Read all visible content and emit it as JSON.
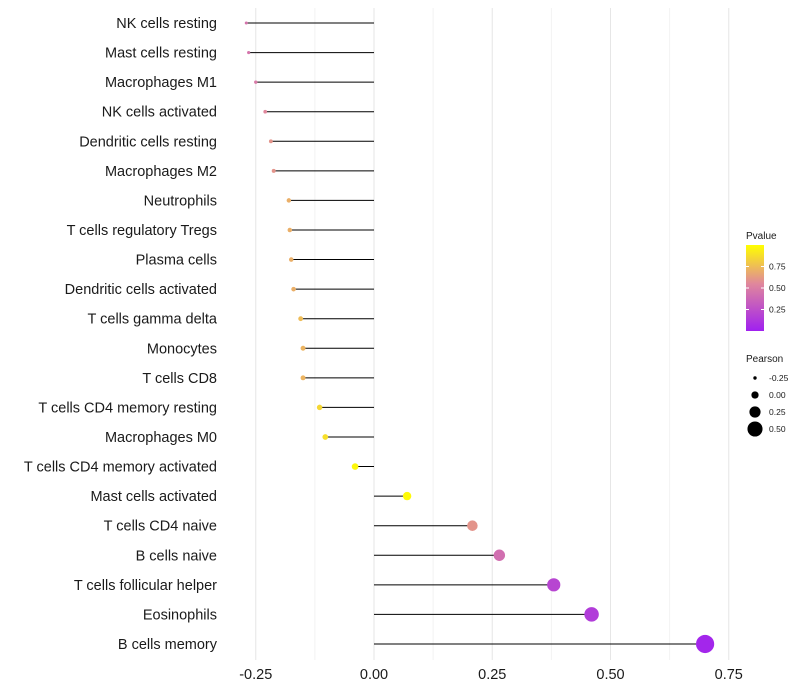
{
  "chart_data": {
    "type": "lollipop",
    "title": "",
    "xlabel": "",
    "ylabel": "",
    "xlim": [
      -0.3,
      0.78
    ],
    "x_ticks": [
      -0.25,
      0.0,
      0.25,
      0.5,
      0.75
    ],
    "x_tick_labels": [
      "-0.25",
      "0.00",
      "0.25",
      "0.50",
      "0.75"
    ],
    "grid": true,
    "categories": [
      "NK cells resting",
      "Mast cells resting",
      "Macrophages M1",
      "NK cells activated",
      "Dendritic cells resting",
      "Macrophages M2",
      "Neutrophils",
      "T cells regulatory  Tregs ",
      "Plasma cells",
      "Dendritic cells activated",
      "T cells gamma delta",
      "Monocytes",
      "T cells CD8",
      "T cells CD4 memory resting",
      "Macrophages M0",
      "T cells CD4 memory activated",
      "Mast cells activated",
      "T cells CD4 naive",
      "B cells naive",
      "T cells follicular helper",
      "Eosinophils",
      "B cells memory"
    ],
    "pearson": [
      -0.27,
      -0.265,
      -0.25,
      -0.23,
      -0.218,
      -0.212,
      -0.18,
      -0.178,
      -0.175,
      -0.17,
      -0.155,
      -0.15,
      -0.15,
      -0.115,
      -0.103,
      -0.04,
      0.07,
      0.208,
      0.265,
      0.38,
      0.46,
      0.7
    ],
    "pvalue": [
      0.45,
      0.45,
      0.48,
      0.55,
      0.6,
      0.6,
      0.7,
      0.7,
      0.7,
      0.7,
      0.75,
      0.72,
      0.72,
      0.85,
      0.88,
      0.97,
      0.98,
      0.6,
      0.42,
      0.2,
      0.15,
      0.03
    ],
    "color_legend": {
      "title": "Pvalue",
      "ticks": [
        "0.75",
        "0.50",
        "0.25"
      ],
      "colors": {
        "low": "#a020f0",
        "mid": "#e0879c",
        "high": "#ffff00"
      }
    },
    "size_legend": {
      "title": "Pearson",
      "entries": [
        "-0.25",
        "0.00",
        "0.25",
        "0.50"
      ]
    }
  }
}
